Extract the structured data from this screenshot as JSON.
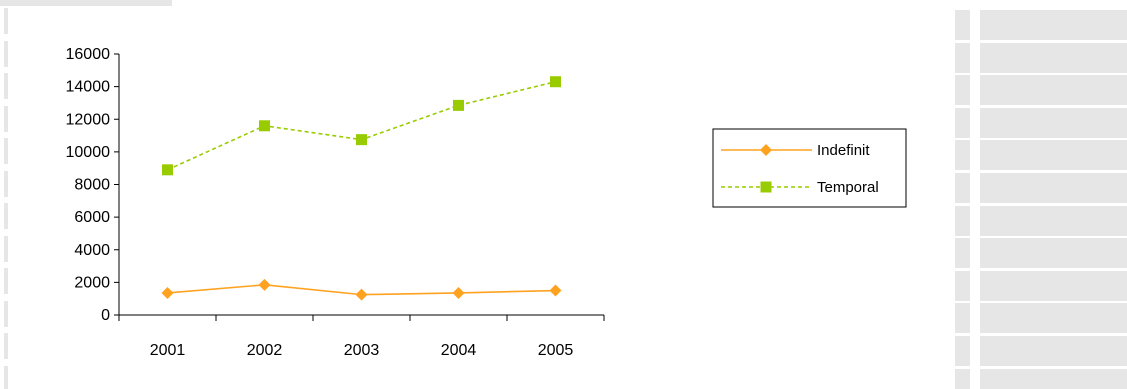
{
  "chart_data": {
    "type": "line",
    "categories": [
      "2001",
      "2002",
      "2003",
      "2004",
      "2005"
    ],
    "series": [
      {
        "name": "Indefinit",
        "values": [
          1350,
          1850,
          1250,
          1350,
          1500
        ],
        "color": "#ffa21f",
        "line_style": "solid",
        "marker": "diamond"
      },
      {
        "name": "Temporal",
        "values": [
          8900,
          11600,
          10750,
          12850,
          14300
        ],
        "color": "#99cc00",
        "line_style": "dashed",
        "marker": "square"
      }
    ],
    "yticks": [
      "0",
      "2000",
      "4000",
      "6000",
      "8000",
      "10000",
      "12000",
      "14000",
      "16000"
    ],
    "ylim": [
      0,
      16000
    ],
    "grid": false,
    "legend_position": "right"
  }
}
